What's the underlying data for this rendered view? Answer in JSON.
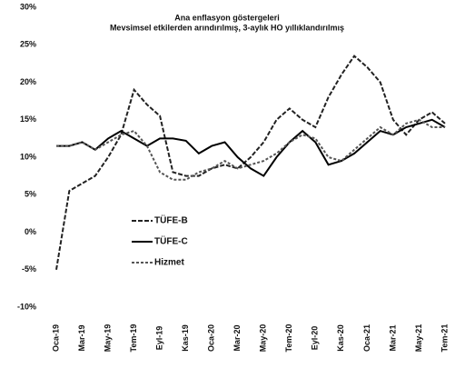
{
  "chart_data": {
    "type": "line",
    "title": "Ana enflasyon göstergeleri",
    "subtitle": "Mevsimsel etkilerden arındırılmış, 3-aylık HO yıllıklandırılmış",
    "categories": [
      "Oca-19",
      null,
      "Mar-19",
      null,
      "May-19",
      null,
      "Tem-19",
      null,
      "Eyl-19",
      null,
      "Kas-19",
      null,
      "Oca-20",
      null,
      "Mar-20",
      null,
      "May-20",
      null,
      "Tem-20",
      null,
      "Eyl-20",
      null,
      "Kas-20",
      null,
      "Oca-21",
      null,
      "Mar-21",
      null,
      "May-21",
      null,
      "Tem-21"
    ],
    "series": [
      {
        "name": "TÜFE-B",
        "color": "#222222",
        "values": [
          -5,
          5.5,
          6.5,
          7.5,
          10,
          13,
          19,
          17,
          15.5,
          8,
          7.5,
          7.5,
          8.5,
          9,
          8.5,
          10,
          12,
          15,
          16.5,
          15,
          14,
          18,
          21,
          23.5,
          22,
          20,
          15,
          13,
          15,
          16,
          14.5
        ]
      },
      {
        "name": "TÜFE-C",
        "color": "#000000",
        "values": [
          11.5,
          11.5,
          12,
          11,
          12.5,
          13.5,
          12.5,
          11.5,
          12.5,
          12.5,
          12.2,
          10.5,
          11.5,
          12,
          10,
          8.5,
          7.5,
          10,
          12,
          13.5,
          12,
          9,
          9.5,
          10.5,
          12,
          13.5,
          13,
          14,
          14.5,
          15,
          14
        ]
      },
      {
        "name": "Hizmet",
        "color": "#555555",
        "values": [
          11.5,
          11.5,
          12,
          11,
          12,
          13,
          13.5,
          11.5,
          8,
          7,
          7,
          8,
          8.5,
          9.5,
          8.5,
          9,
          9.5,
          10.5,
          12,
          13,
          12.5,
          10,
          9.5,
          11,
          12.5,
          14,
          13,
          14.5,
          15,
          14,
          14
        ]
      }
    ],
    "ylim": [
      -10,
      30
    ],
    "yticks": [
      {
        "value": -10,
        "label": "-10%"
      },
      {
        "value": -5,
        "label": "-5%"
      },
      {
        "value": 0,
        "label": "0%"
      },
      {
        "value": 5,
        "label": "5%"
      },
      {
        "value": 10,
        "label": "10%"
      },
      {
        "value": 15,
        "label": "15%"
      },
      {
        "value": 20,
        "label": "20%"
      },
      {
        "value": 25,
        "label": "25%"
      },
      {
        "value": 30,
        "label": "30%"
      }
    ],
    "legend": "left"
  }
}
